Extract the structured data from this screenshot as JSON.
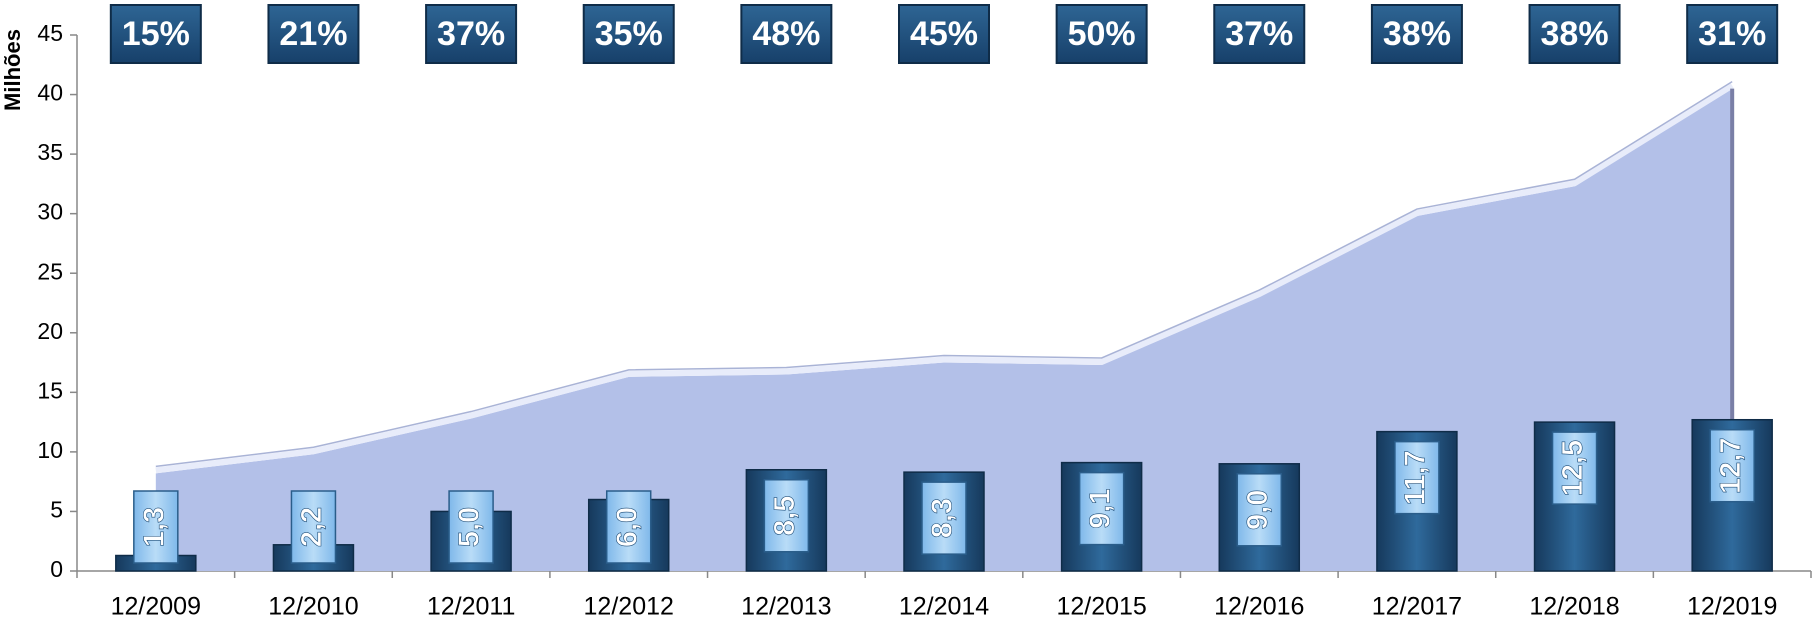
{
  "chart_data": {
    "type": "bar_area",
    "y_label": "Milhões",
    "categories": [
      "12/2009",
      "12/2010",
      "12/2011",
      "12/2012",
      "12/2013",
      "12/2014",
      "12/2015",
      "12/2016",
      "12/2017",
      "12/2018",
      "12/2019"
    ],
    "series": [
      {
        "type": "area",
        "color": "#b3c0e8",
        "values": [
          8.2,
          9.8,
          12.8,
          16.3,
          16.5,
          17.5,
          17.3,
          23,
          29.8,
          32.3,
          40.5
        ]
      },
      {
        "type": "bar",
        "color": "#1f4e79",
        "values": [
          1.3,
          2.2,
          5.0,
          6.0,
          8.5,
          8.3,
          9.1,
          9.0,
          11.7,
          12.5,
          12.7
        ],
        "value_labels": [
          "1,3",
          "2,2",
          "5,0",
          "6,0",
          "8,5",
          "8,3",
          "9,1",
          "9,0",
          "11,7",
          "12,5",
          "12,7"
        ]
      }
    ],
    "percentages": {
      "values": [
        15,
        21,
        37,
        35,
        48,
        45,
        50,
        37,
        38,
        38,
        31
      ],
      "value_labels": [
        "15%",
        "21%",
        "37%",
        "35%",
        "48%",
        "45%",
        "50%",
        "37%",
        "38%",
        "38%",
        "31%"
      ]
    },
    "ylim": [
      0,
      45
    ],
    "yticks": [
      0,
      5,
      10,
      15,
      20,
      25,
      30,
      35,
      40,
      45
    ]
  }
}
